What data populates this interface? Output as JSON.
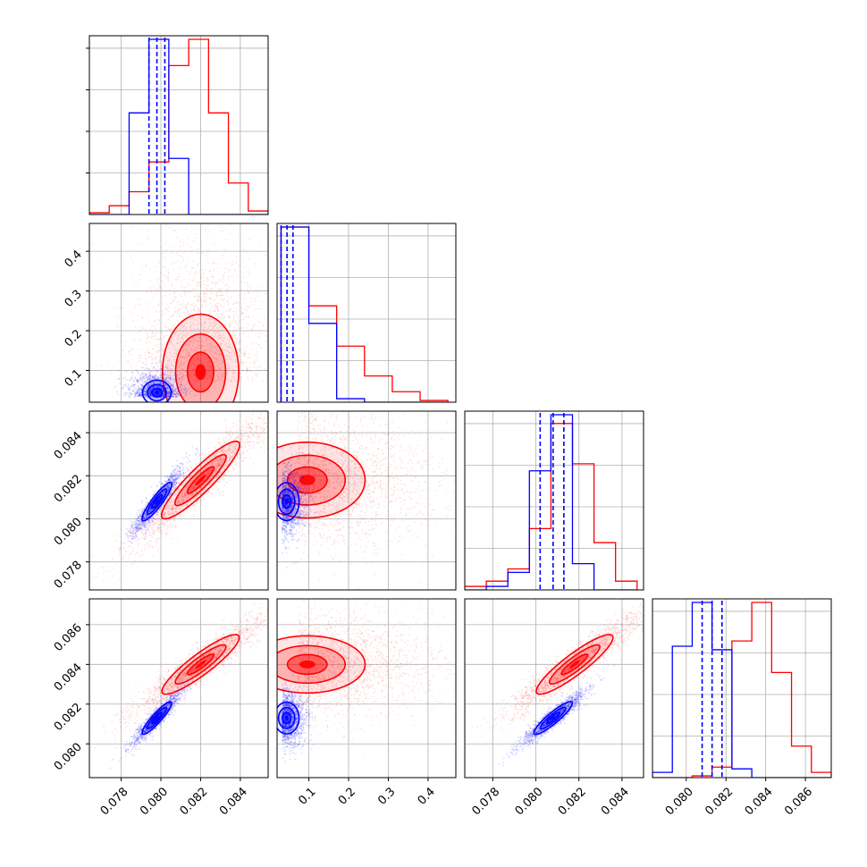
{
  "chart_data": {
    "type": "scatter",
    "subtype": "corner-plot",
    "parameters": 4,
    "grid": true,
    "colors": {
      "series_a": "#0000ff",
      "series_b": "#ff0000",
      "frame": "#000000",
      "grid": "#b0b0b0"
    },
    "series": [
      {
        "color": "#0000ff",
        "means": [
          0.0798,
          0.055,
          0.0808,
          0.0813
        ],
        "sigmas": [
          0.00045,
          0.015,
          0.00055,
          0.0005
        ],
        "quantile_lines": [
          [
            0.0794,
            0.0798,
            0.0802
          ],
          [
            0.03,
            0.045,
            0.06
          ],
          [
            0.0802,
            0.0808,
            0.0813
          ],
          [
            0.0808,
            0.0813,
            0.0818
          ]
        ]
      },
      {
        "color": "#ff0000",
        "means": [
          0.082,
          0.12,
          0.0818,
          0.084
        ],
        "sigmas": [
          0.0012,
          0.07,
          0.0011,
          0.0009
        ],
        "quantile_lines": []
      }
    ],
    "hist_values": {
      "p0": {
        "bin_edges": [
          0.0764,
          0.0774,
          0.0784,
          0.0794,
          0.0804,
          0.0814,
          0.0824,
          0.0834,
          0.0844,
          0.0854
        ],
        "blue": [
          0.0,
          0.0,
          0.58,
          1.0,
          0.32,
          0.0,
          0.0,
          0.0,
          0.0
        ],
        "red": [
          0.01,
          0.05,
          0.13,
          0.3,
          0.85,
          1.0,
          0.58,
          0.18,
          0.02
        ]
      },
      "p1": {
        "bin_edges": [
          0.03,
          0.1,
          0.17,
          0.24,
          0.31,
          0.38,
          0.45
        ],
        "blue": [
          1.0,
          0.45,
          0.02,
          0.0,
          0.0,
          0.0
        ],
        "red": [
          1.0,
          0.55,
          0.32,
          0.15,
          0.06,
          0.01
        ]
      },
      "p2": {
        "bin_edges": [
          0.0767,
          0.0777,
          0.0787,
          0.0797,
          0.0807,
          0.0817,
          0.0827,
          0.0837,
          0.0847
        ],
        "blue": [
          0.0,
          0.02,
          0.1,
          0.68,
          1.0,
          0.15,
          0.0,
          0.0
        ],
        "red": [
          0.02,
          0.05,
          0.12,
          0.35,
          0.95,
          0.72,
          0.27,
          0.05
        ]
      },
      "p3": {
        "bin_edges": [
          0.0783,
          0.0793,
          0.0803,
          0.0813,
          0.0823,
          0.0833,
          0.0843,
          0.0853,
          0.0863,
          0.0873
        ],
        "blue": [
          0.03,
          0.75,
          1.0,
          0.73,
          0.05,
          0.0,
          0.0,
          0.0,
          0.0
        ],
        "red": [
          0.0,
          0.0,
          0.01,
          0.06,
          0.78,
          1.0,
          0.6,
          0.18,
          0.03
        ]
      }
    },
    "tick_labels": {
      "p0": [
        "0.078",
        "0.080",
        "0.082",
        "0.084"
      ],
      "p1": [
        "0.1",
        "0.2",
        "0.3",
        "0.4"
      ],
      "p2": [
        "0.078",
        "0.080",
        "0.082",
        "0.084"
      ],
      "p3": [
        "0.080",
        "0.082",
        "0.084",
        "0.086"
      ]
    },
    "tick_values": {
      "p0": [
        0.078,
        0.08,
        0.082,
        0.084
      ],
      "p1": [
        0.1,
        0.2,
        0.3,
        0.4
      ],
      "p2": [
        0.078,
        0.08,
        0.082,
        0.084
      ],
      "p3": [
        0.08,
        0.082,
        0.084,
        0.086
      ]
    },
    "axis_ranges": {
      "p0": [
        0.0764,
        0.0854
      ],
      "p1": [
        0.02,
        0.47
      ],
      "p2": [
        0.0767,
        0.085
      ],
      "p3": [
        0.0783,
        0.0873
      ]
    }
  }
}
